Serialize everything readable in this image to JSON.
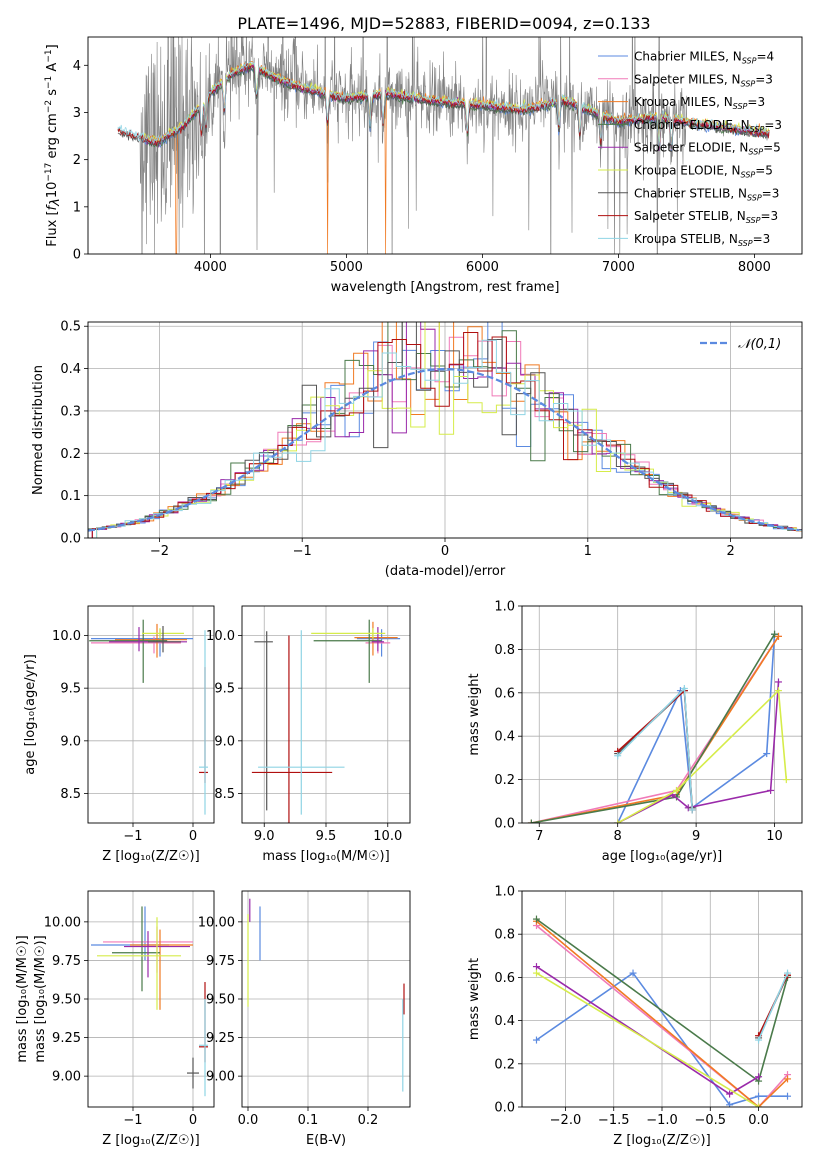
{
  "title": "PLATE=1496, MJD=52883, FIBERID=0094, z=0.133",
  "colors": {
    "grid": "#b0b0b0",
    "gray": "#808080",
    "c1": "#5b8ae0",
    "c2": "#f07ab8",
    "c3": "#f07a23",
    "c4": "#4a7a4a",
    "c5": "#9a2aaa",
    "c6": "#d6ec4a",
    "c7": "#555555",
    "c8": "#b01010",
    "c9": "#8fd4e4"
  },
  "legend_models": [
    {
      "name": "Chabrier MILES",
      "n": "4",
      "color": "c1"
    },
    {
      "name": "Salpeter MILES",
      "n": "3",
      "color": "c2"
    },
    {
      "name": "Kroupa MILES",
      "n": "3",
      "color": "c3"
    },
    {
      "name": "Chabrier ELODIE",
      "n": "3",
      "color": "c4"
    },
    {
      "name": "Salpeter ELODIE",
      "n": "5",
      "color": "c5"
    },
    {
      "name": "Kroupa ELODIE",
      "n": "5",
      "color": "c6"
    },
    {
      "name": "Chabrier STELIB",
      "n": "3",
      "color": "c7"
    },
    {
      "name": "Salpeter STELIB",
      "n": "3",
      "color": "c8"
    },
    {
      "name": "Kroupa STELIB",
      "n": "3",
      "color": "c9"
    }
  ],
  "chart_data": [
    {
      "id": "spectrum",
      "type": "line",
      "xlabel": "wavelength [Angstrom, rest frame]",
      "xlim": [
        3100,
        8350
      ],
      "ylim": [
        0,
        4.6
      ],
      "xticks": [
        4000,
        5000,
        6000,
        7000,
        8000
      ],
      "yticks": [
        0,
        1,
        2,
        3,
        4
      ],
      "data_range": [
        3320,
        8110
      ],
      "anchors_x": [
        3320,
        3450,
        3600,
        3800,
        4000,
        4150,
        4300,
        4500,
        4700,
        5000,
        5300,
        5600,
        6000,
        6300,
        6600,
        7000,
        7300,
        7600,
        8100
      ],
      "anchors_y": [
        2.62,
        2.5,
        2.35,
        2.7,
        3.4,
        3.8,
        4.0,
        3.7,
        3.5,
        3.3,
        3.4,
        3.25,
        3.15,
        3.05,
        3.25,
        2.8,
        2.9,
        2.75,
        2.55
      ],
      "absorption_lines": [
        3934,
        3968,
        4102,
        4340,
        4861,
        5175,
        5270,
        5890,
        6563,
        6716,
        6870,
        7300,
        7390
      ]
    },
    {
      "id": "residuals",
      "type": "line",
      "xlabel": "(data-model)/error",
      "ylabel": "Normed distribution",
      "xlim": [
        -2.5,
        2.5
      ],
      "ylim": [
        0,
        0.51
      ],
      "xticks": [
        -2,
        -1,
        0,
        1,
        2
      ],
      "yticks": [
        0.0,
        0.1,
        0.2,
        0.3,
        0.4,
        0.5
      ],
      "bin_width": 0.1,
      "legend": "𝒩(0,1)"
    },
    {
      "id": "age_vs_Z",
      "type": "scatter",
      "xlabel": "Z [log₁₀(Z/Z☉)]",
      "xlim": [
        -1.75,
        0.35
      ],
      "ylim": [
        8.22,
        10.28
      ],
      "xticks": [
        -1,
        0
      ],
      "yticks": [
        8.5,
        9.0,
        9.5,
        10.0
      ],
      "points": [
        {
          "s": "c1",
          "x": -0.55,
          "y": 9.97,
          "xerr": [
            1.15,
            0.55
          ],
          "yerr": [
            0.17,
            0.09
          ]
        },
        {
          "s": "c2",
          "x": -0.65,
          "y": 9.93,
          "xerr": [
            1.05,
            0.45
          ],
          "yerr": [
            0.1,
            0.06
          ]
        },
        {
          "s": "c3",
          "x": -0.6,
          "y": 9.96,
          "xerr": [
            0.7,
            0.5
          ],
          "yerr": [
            0.17,
            0.15
          ]
        },
        {
          "s": "c4",
          "x": -0.83,
          "y": 9.95,
          "xerr": [
            0.9,
            0.4
          ],
          "yerr": [
            0.4,
            0.2
          ]
        },
        {
          "s": "c5",
          "x": -0.9,
          "y": 9.94,
          "xerr": [
            0.5,
            0.8
          ],
          "yerr": [
            0.09,
            0.14
          ]
        },
        {
          "s": "c6",
          "x": -0.55,
          "y": 10.02,
          "xerr": [
            0.3,
            0.4
          ],
          "yerr": [
            0.05,
            0.05
          ]
        },
        {
          "s": "c7",
          "x": -0.5,
          "y": 9.94,
          "xerr": [
            0.25,
            0.3
          ],
          "yerr": [
            0.1,
            0.15
          ]
        },
        {
          "s": "c8",
          "x": 0.2,
          "y": 8.7,
          "xerr": [
            0.1,
            0.05
          ],
          "yerr": [
            0.1,
            1.0
          ]
        },
        {
          "s": "c9",
          "x": 0.2,
          "y": 8.75,
          "xerr": [
            0.1,
            0.05
          ],
          "yerr": [
            0.45,
            1.3
          ]
        }
      ]
    },
    {
      "id": "age_vs_mass",
      "type": "scatter",
      "xlabel": "mass [log₁₀(M/M☉)]",
      "xlim": [
        8.82,
        10.18
      ],
      "ylim": [
        8.22,
        10.28
      ],
      "xticks": [
        9.0,
        9.5,
        10.0
      ],
      "yticks": [
        8.5,
        9.0,
        9.5,
        10.0
      ],
      "points": [
        {
          "s": "c1",
          "x": 9.95,
          "y": 9.97,
          "xerr": [
            0.2,
            0.15
          ],
          "yerr": [
            0.17,
            0.09
          ]
        },
        {
          "s": "c2",
          "x": 9.92,
          "y": 9.93,
          "xerr": [
            0.1,
            0.1
          ],
          "yerr": [
            0.1,
            0.06
          ]
        },
        {
          "s": "c3",
          "x": 9.88,
          "y": 9.98,
          "xerr": [
            0.15,
            0.2
          ],
          "yerr": [
            0.17,
            0.15
          ]
        },
        {
          "s": "c4",
          "x": 9.85,
          "y": 9.95,
          "xerr": [
            0.45,
            0.1
          ],
          "yerr": [
            0.4,
            0.2
          ]
        },
        {
          "s": "c5",
          "x": 9.92,
          "y": 9.94,
          "xerr": [
            0.05,
            0.05
          ],
          "yerr": [
            0.09,
            0.14
          ]
        },
        {
          "s": "c6",
          "x": 9.88,
          "y": 10.02,
          "xerr": [
            0.5,
            0.1
          ],
          "yerr": [
            0.05,
            0.05
          ]
        },
        {
          "s": "c7",
          "x": 9.02,
          "y": 9.94,
          "xerr": [
            0.1,
            0.05
          ],
          "yerr": [
            1.6,
            0.1
          ]
        },
        {
          "s": "c8",
          "x": 9.2,
          "y": 8.7,
          "xerr": [
            0.3,
            0.35
          ],
          "yerr": [
            0.5,
            1.3
          ]
        },
        {
          "s": "c9",
          "x": 9.3,
          "y": 8.75,
          "xerr": [
            0.35,
            0.35
          ],
          "yerr": [
            0.45,
            1.3
          ]
        }
      ]
    },
    {
      "id": "weight_vs_age",
      "type": "line",
      "xlabel": "age  [log₁₀(age/yr)]",
      "ylabel": "mass weight",
      "xlim": [
        6.78,
        10.35
      ],
      "ylim": [
        0,
        1.0
      ],
      "xticks": [
        7,
        8,
        9,
        10
      ],
      "yticks": [
        0.0,
        0.2,
        0.4,
        0.6,
        0.8,
        1.0
      ],
      "series": [
        {
          "s": "c1",
          "x": [
            8.0,
            8.8,
            8.95,
            9.9,
            10.0
          ],
          "y": [
            0.0,
            0.61,
            0.07,
            0.32,
            0.87
          ]
        },
        {
          "s": "c2",
          "x": [
            6.9,
            8.75,
            10.05
          ],
          "y": [
            0.0,
            0.15,
            0.86
          ]
        },
        {
          "s": "c3",
          "x": [
            6.9,
            8.75,
            10.05
          ],
          "y": [
            0.0,
            0.13,
            0.86
          ]
        },
        {
          "s": "c4",
          "x": [
            6.9,
            8.75,
            10.0
          ],
          "y": [
            0.0,
            0.12,
            0.87
          ]
        },
        {
          "s": "c5",
          "x": [
            8.0,
            8.7,
            8.9,
            9.95,
            10.05
          ],
          "y": [
            0.0,
            0.13,
            0.07,
            0.15,
            0.65
          ]
        },
        {
          "s": "c6",
          "x": [
            8.0,
            8.75,
            10.05,
            10.15
          ],
          "y": [
            0.0,
            0.15,
            0.61,
            0.2
          ]
        },
        {
          "s": "c7",
          "x": [
            8.0,
            8.85,
            8.95
          ],
          "y": [
            0.32,
            0.61,
            0.07
          ]
        },
        {
          "s": "c8",
          "x": [
            8.0,
            8.85,
            8.95
          ],
          "y": [
            0.33,
            0.61,
            0.06
          ]
        },
        {
          "s": "c9",
          "x": [
            8.0,
            8.85,
            8.95
          ],
          "y": [
            0.31,
            0.62,
            0.06
          ]
        }
      ]
    },
    {
      "id": "mass_vs_Z",
      "type": "scatter",
      "xlabel": "Z [log₁₀(Z/Z☉)]",
      "ylabel": "mass [log₁₀(M/M☉)]",
      "xlim": [
        -1.75,
        0.35
      ],
      "ylim": [
        8.8,
        10.2
      ],
      "xticks": [
        -1,
        0
      ],
      "yticks": [
        9.0,
        9.25,
        9.5,
        9.75,
        10.0
      ],
      "points": [
        {
          "s": "c1",
          "x": -0.8,
          "y": 9.85,
          "xerr": [
            0.9,
            0.4
          ],
          "yerr": [
            0.1,
            0.25
          ]
        },
        {
          "s": "c2",
          "x": -0.6,
          "y": 9.87,
          "xerr": [
            0.9,
            0.6
          ],
          "yerr": [
            0.2,
            0.1
          ]
        },
        {
          "s": "c3",
          "x": -0.55,
          "y": 9.85,
          "xerr": [
            0.5,
            0.55
          ],
          "yerr": [
            0.42,
            0.1
          ]
        },
        {
          "s": "c4",
          "x": -0.85,
          "y": 9.8,
          "xerr": [
            0.5,
            0.3
          ],
          "yerr": [
            0.25,
            0.3
          ]
        },
        {
          "s": "c5",
          "x": -0.75,
          "y": 9.84,
          "xerr": [
            0.4,
            0.7
          ],
          "yerr": [
            0.2,
            0.1
          ]
        },
        {
          "s": "c6",
          "x": -0.6,
          "y": 9.78,
          "xerr": [
            1.0,
            0.4
          ],
          "yerr": [
            0.35,
            0.25
          ]
        },
        {
          "s": "c7",
          "x": 0.0,
          "y": 9.02,
          "xerr": [
            0.1,
            0.1
          ],
          "yerr": [
            0.1,
            0.1
          ]
        },
        {
          "s": "c8",
          "x": 0.2,
          "y": 9.19,
          "xerr": [
            0.1,
            0.05
          ],
          "yerr": [
            0.1,
            0.42
          ]
        },
        {
          "s": "c9",
          "x": 0.2,
          "y": 9.2,
          "xerr": [
            0.1,
            0.05
          ],
          "yerr": [
            0.33,
            0.3
          ]
        }
      ]
    },
    {
      "id": "mass_vs_ebv",
      "type": "scatter",
      "xlabel": "E(B-V)",
      "xlim": [
        -0.01,
        0.27
      ],
      "ylim": [
        8.8,
        10.2
      ],
      "xticks": [
        0.0,
        0.1,
        0.2
      ],
      "yticks": [
        9.0,
        9.25,
        9.5,
        9.75,
        10.0
      ],
      "points": [
        {
          "s": "c1",
          "x": 0.02,
          "y": 9.85,
          "xerr": [
            0.0,
            0.0
          ],
          "yerr": [
            0.1,
            0.25
          ]
        },
        {
          "s": "c6",
          "x": 0.0,
          "y": 9.75,
          "xerr": [
            0.0,
            0.0
          ],
          "yerr": [
            0.3,
            0.3
          ]
        },
        {
          "s": "c5",
          "x": 0.003,
          "y": 10.05,
          "xerr": [
            0.0,
            0.0
          ],
          "yerr": [
            0.05,
            0.1
          ]
        },
        {
          "s": "c8",
          "x": 0.26,
          "y": 9.5,
          "xerr": [
            0.0,
            0.0
          ],
          "yerr": [
            0.1,
            0.1
          ]
        },
        {
          "s": "c9",
          "x": 0.258,
          "y": 9.2,
          "xerr": [
            0.0,
            0.0
          ],
          "yerr": [
            0.3,
            0.3
          ]
        }
      ]
    },
    {
      "id": "weight_vs_Z",
      "type": "line",
      "xlabel": "Z [log₁₀(Z/Z☉)]",
      "ylabel": "mass weight",
      "xlim": [
        -2.45,
        0.45
      ],
      "ylim": [
        0,
        1.0
      ],
      "xticks": [
        -2.0,
        -1.5,
        -1.0,
        -0.5,
        0.0
      ],
      "yticks": [
        0.0,
        0.2,
        0.4,
        0.6,
        0.8,
        1.0
      ],
      "series": [
        {
          "s": "c1",
          "x": [
            -2.3,
            -1.3,
            -0.3,
            0.0,
            0.3
          ],
          "y": [
            0.31,
            0.62,
            0.01,
            0.05,
            0.05
          ]
        },
        {
          "s": "c2",
          "x": [
            -2.3,
            0.0,
            0.3
          ],
          "y": [
            0.84,
            0.0,
            0.15
          ]
        },
        {
          "s": "c3",
          "x": [
            -2.3,
            0.0,
            0.3
          ],
          "y": [
            0.86,
            0.0,
            0.13
          ]
        },
        {
          "s": "c4",
          "x": [
            -2.3,
            0.0,
            0.3
          ],
          "y": [
            0.87,
            0.12,
            0.6
          ]
        },
        {
          "s": "c5",
          "x": [
            -2.3,
            -0.3,
            0.0
          ],
          "y": [
            0.65,
            0.06,
            0.14
          ]
        },
        {
          "s": "c6",
          "x": [
            -2.3,
            0.0
          ],
          "y": [
            0.62,
            0.0
          ]
        },
        {
          "s": "c7",
          "x": [
            0.0,
            0.3
          ],
          "y": [
            0.32,
            0.61
          ]
        },
        {
          "s": "c8",
          "x": [
            0.0,
            0.3
          ],
          "y": [
            0.33,
            0.61
          ]
        },
        {
          "s": "c9",
          "x": [
            0.0,
            0.3
          ],
          "y": [
            0.31,
            0.62
          ]
        }
      ]
    }
  ]
}
